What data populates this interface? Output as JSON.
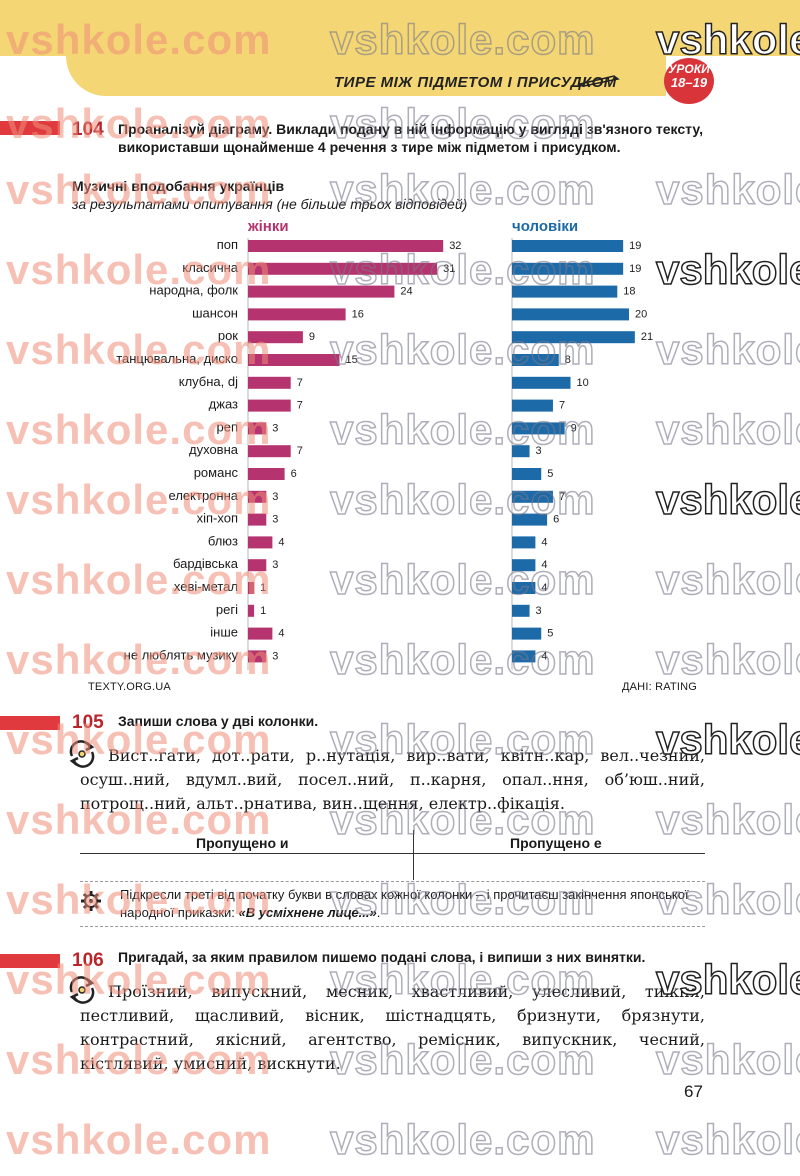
{
  "header": {
    "title": "ТИРЕ МІЖ ПІДМЕТОМ І ПРИСУДКОМ",
    "badge_line1": "УРОКИ",
    "badge_line2": "18–19"
  },
  "watermark": "vshkole.com",
  "watermark_short": "vshkole",
  "exercise_104": {
    "number": "104",
    "text": "Проаналізуй діаграму. Виклади подану в ній інформацію у вигляді зв'язного тексту, використавши щонайменше 4 речення з тире між підметом і присудком."
  },
  "chart_data": {
    "type": "bar",
    "orientation": "horizontal",
    "title": "Музичні вподобання українців",
    "subtitle": "за результатами опитування (не більше трьох відповідей)",
    "categories": [
      "поп",
      "класична",
      "народна, фолк",
      "шансон",
      "рок",
      "танцювальна, диско",
      "клубна, dj",
      "джаз",
      "реп",
      "духовна",
      "романс",
      "електронна",
      "хіп-хоп",
      "блюз",
      "бардівська",
      "хеві-метал",
      "регі",
      "інше",
      "не люблять музику"
    ],
    "series": [
      {
        "name": "жінки",
        "color": "#b5336e",
        "values": [
          32,
          31,
          24,
          16,
          9,
          15,
          7,
          7,
          3,
          7,
          6,
          3,
          3,
          4,
          3,
          1,
          1,
          4,
          3
        ]
      },
      {
        "name": "чоловіки",
        "color": "#1c6aa8",
        "values": [
          19,
          19,
          18,
          20,
          21,
          8,
          10,
          7,
          9,
          3,
          5,
          7,
          6,
          4,
          4,
          4,
          3,
          5,
          4
        ]
      }
    ],
    "source_left": "TEXTY.ORG.UA",
    "source_right": "ДАНІ: RATING"
  },
  "exercise_105": {
    "number": "105",
    "text": "Запиши слова у дві колонки.",
    "words": "Вист..гати, дот..рати, р..нутація, вир..вати, квітн..кар, вел..чезний, осуш..ний, вдумл..вий, посел..ний, п..карня, опал..ння, об’юш..ний, потрощ..ний, альт..рнатива, вин..щення, електр..фікація.",
    "col1": "Пропущено и",
    "col2": "Пропущено е",
    "hint_pre": "Підкресли треті від початку букви в словах кожної колонки – і прочитаєш закінчення японської народної приказки: ",
    "hint_bold": "«В усміхнене лице...»",
    "hint_post": "."
  },
  "exercise_106": {
    "number": "106",
    "text": "Пригадай, за яким правилом пишемо подані слова, і випиши з них винятки.",
    "words": "Проїзний, випускний, месник, хвастливий, улесливий, тижня, пестливий, щасливий, вісник, шістнадцять, бризнути, брязнути, контрастний, якісний, агентство, ремісник, випускник, чесний, кістлявий, умисний, вискнути."
  },
  "page_number": "67"
}
